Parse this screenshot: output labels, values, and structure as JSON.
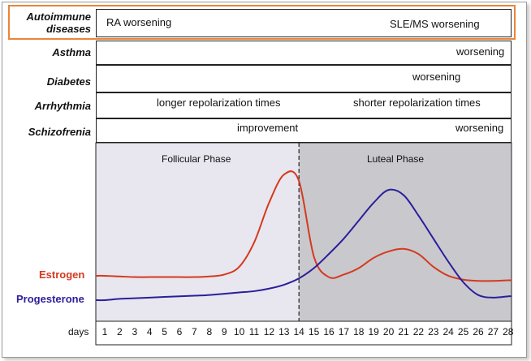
{
  "rows": [
    {
      "label_line1": "Autoimmune",
      "label_line2": "diseases",
      "left_text": "RA worsening",
      "right_text": "SLE/MS worsening"
    },
    {
      "label": "Asthma",
      "right_text": "worsening"
    },
    {
      "label": "Diabetes",
      "right_text": "worsening"
    },
    {
      "label": "Arrhythmia",
      "left_text": "longer repolarization times",
      "right_text": "shorter repolarization times"
    },
    {
      "label": "Schizofrenia",
      "center_text": "improvement",
      "right_text": "worsening"
    }
  ],
  "chart_data": {
    "type": "line",
    "title": "",
    "xlabel": "days",
    "x": [
      1,
      2,
      3,
      4,
      5,
      6,
      7,
      8,
      9,
      10,
      11,
      12,
      13,
      14,
      15,
      16,
      17,
      18,
      19,
      20,
      21,
      22,
      23,
      24,
      25,
      26,
      27,
      28
    ],
    "phases": [
      {
        "name": "Follicular Phase",
        "from_day": 1,
        "to_day": 14,
        "color": "#e8e6ee"
      },
      {
        "name": "Luteal Phase",
        "from_day": 14,
        "to_day": 28,
        "color": "#c9c8cd"
      }
    ],
    "divider_day": 14,
    "ylim": [
      0,
      100
    ],
    "series": [
      {
        "name": "Estrogen",
        "color": "#d43a1f",
        "values": [
          19,
          18.5,
          18,
          18,
          18,
          18,
          18,
          18.5,
          20,
          26,
          45,
          76,
          98,
          93,
          34,
          18,
          20,
          25,
          33,
          38,
          40,
          36,
          26,
          19,
          16,
          15,
          15,
          15.5
        ]
      },
      {
        "name": "Progesterone",
        "color": "#2a1f9b",
        "values": [
          0,
          1,
          1.5,
          2,
          2.5,
          3,
          3.5,
          4,
          5,
          6,
          7,
          9,
          12,
          17,
          25,
          36,
          48,
          62,
          76,
          86,
          82,
          66,
          48,
          30,
          14,
          4,
          2,
          3
        ]
      }
    ]
  }
}
